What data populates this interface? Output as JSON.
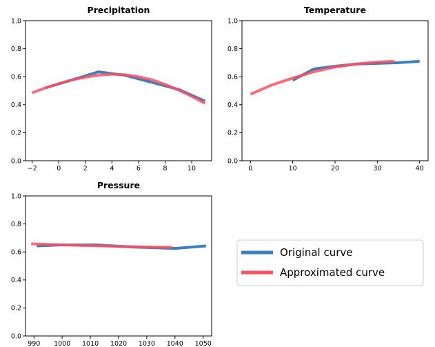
{
  "colors": {
    "original": "#3a7fc1",
    "approximated": "#ff4f5e"
  },
  "legend": {
    "position": "center-right",
    "entries": [
      {
        "label": "Original curve",
        "color": "#3a7fc1"
      },
      {
        "label": "Approximated curve",
        "color": "#ff4f5e"
      }
    ]
  },
  "chart_data": [
    {
      "type": "line",
      "title": "Precipitation",
      "xlim": [
        -2.5,
        11.5
      ],
      "ylim": [
        0,
        1
      ],
      "xticks": [
        -2,
        0,
        2,
        4,
        6,
        8,
        10
      ],
      "xtick_labels": [
        "−2",
        "0",
        "2",
        "4",
        "6",
        "8",
        "10"
      ],
      "yticks": [
        0,
        0.2,
        0.4,
        0.6,
        0.8,
        1.0
      ],
      "ytick_labels": [
        "0.0",
        "0.2",
        "0.4",
        "0.6",
        "0.8",
        "1.0"
      ],
      "series": [
        {
          "name": "Approximated curve",
          "x": [
            -2,
            -1,
            0,
            1,
            2,
            3,
            4,
            5,
            6,
            7,
            8,
            9,
            10,
            11
          ],
          "y": [
            0.485,
            0.52,
            0.55,
            0.577,
            0.597,
            0.611,
            0.618,
            0.614,
            0.6,
            0.578,
            0.545,
            0.505,
            0.46,
            0.41
          ]
        },
        {
          "name": "Original curve",
          "x": [
            -1,
            3,
            5,
            9,
            11
          ],
          "y": [
            0.52,
            0.635,
            0.61,
            0.51,
            0.425
          ]
        }
      ]
    },
    {
      "type": "line",
      "title": "Temperature",
      "xlim": [
        -2,
        42
      ],
      "ylim": [
        0,
        1
      ],
      "xticks": [
        0,
        10,
        20,
        30,
        40
      ],
      "xtick_labels": [
        "0",
        "10",
        "20",
        "30",
        "40"
      ],
      "yticks": [
        0,
        0.2,
        0.4,
        0.6,
        0.8,
        1.0
      ],
      "ytick_labels": [
        "0.0",
        "0.2",
        "0.4",
        "0.6",
        "0.8",
        "1.0"
      ],
      "series": [
        {
          "name": "Approximated curve",
          "x": [
            0,
            5,
            10,
            15,
            20,
            25,
            30,
            34
          ],
          "y": [
            0.475,
            0.54,
            0.59,
            0.635,
            0.67,
            0.69,
            0.705,
            0.71
          ]
        },
        {
          "name": "Original curve",
          "x": [
            10,
            15,
            20,
            25,
            30,
            35,
            40
          ],
          "y": [
            0.575,
            0.655,
            0.675,
            0.69,
            0.695,
            0.7,
            0.71
          ]
        }
      ]
    },
    {
      "type": "line",
      "title": "Pressure",
      "xlim": [
        987,
        1053
      ],
      "ylim": [
        0,
        1
      ],
      "xticks": [
        990,
        1000,
        1010,
        1020,
        1030,
        1040,
        1050
      ],
      "xtick_labels": [
        "990",
        "1000",
        "1010",
        "1020",
        "1030",
        "1040",
        "1050"
      ],
      "yticks": [
        0,
        0.2,
        0.4,
        0.6,
        0.8,
        1.0
      ],
      "ytick_labels": [
        "0.0",
        "0.2",
        "0.4",
        "0.6",
        "0.8",
        "1.0"
      ],
      "series": [
        {
          "name": "Approximated curve",
          "x": [
            989,
            1000,
            1010,
            1020,
            1030,
            1039
          ],
          "y": [
            0.658,
            0.65,
            0.645,
            0.64,
            0.635,
            0.633
          ]
        },
        {
          "name": "Original curve",
          "x": [
            991,
            1000,
            1012,
            1025,
            1040,
            1051
          ],
          "y": [
            0.643,
            0.65,
            0.65,
            0.635,
            0.625,
            0.643
          ]
        }
      ]
    }
  ]
}
